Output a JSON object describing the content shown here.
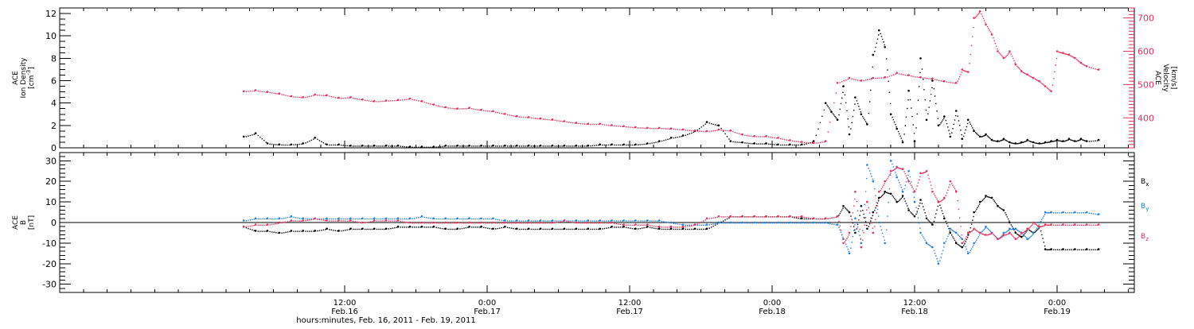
{
  "chart_data": [
    {
      "type": "scatter",
      "panel": "plasma",
      "ylabel_lines": [
        "ACE",
        "Ion Density",
        "[cm^-3]"
      ],
      "y2label_lines": [
        "ACE",
        "Velocity",
        "[km/s]"
      ],
      "ylim": [
        0,
        12.5
      ],
      "y_ticks": [
        0,
        2,
        4,
        6,
        8,
        10,
        12
      ],
      "y2lim": [
        310,
        730
      ],
      "y2_ticks": [
        400,
        500,
        600,
        700
      ],
      "series": [
        {
          "axis": "left",
          "color": "#000000",
          "x_hours": [
            0,
            1,
            2,
            3,
            4,
            5,
            6,
            7,
            8,
            9,
            10,
            11,
            12,
            13,
            14,
            15,
            16,
            17,
            18,
            19,
            20,
            21,
            22,
            23,
            24,
            25,
            26,
            27,
            28,
            29,
            30,
            31,
            32,
            33,
            34,
            35,
            36,
            37,
            38,
            39,
            40,
            41,
            42,
            43,
            44,
            45,
            46,
            47,
            48,
            49,
            49.5,
            50,
            50.5,
            51,
            51.5,
            52,
            52.5,
            53,
            53.5,
            54,
            54.5,
            55,
            55.5,
            56,
            56.5,
            57,
            57.5,
            58,
            58.5,
            59,
            59.5,
            60,
            60.5,
            61,
            61.5,
            62,
            62.5,
            63,
            63.5,
            64,
            64.5,
            65,
            65.5,
            66,
            66.5,
            67,
            67.5,
            68,
            68.5,
            69,
            69.5,
            70,
            70.5,
            71,
            72
          ],
          "y": [
            1.0,
            1.3,
            0.4,
            0.3,
            0.3,
            0.4,
            0.9,
            0.3,
            0.3,
            0.2,
            0.2,
            0.2,
            0.2,
            0.2,
            0.1,
            0.1,
            0.1,
            0.2,
            0.2,
            0.2,
            0.2,
            0.2,
            0.2,
            0.2,
            0.2,
            0.2,
            0.2,
            0.2,
            0.2,
            0.2,
            0.3,
            0.3,
            0.3,
            0.3,
            0.4,
            0.6,
            0.9,
            1.1,
            1.5,
            2.3,
            2.0,
            0.6,
            0.5,
            0.4,
            0.4,
            0.3,
            0.3,
            0.3,
            0.6,
            4.0,
            3.2,
            2.5,
            5.5,
            1.2,
            4.5,
            3.0,
            2.1,
            8.3,
            10.5,
            9.0,
            3.0,
            1.7,
            0.5,
            5.1,
            0.6,
            8.0,
            2.5,
            6.0,
            2.0,
            2.8,
            1.0,
            3.3,
            0.8,
            2.5,
            1.5,
            1.0,
            1.2,
            0.7,
            0.6,
            0.8,
            0.5,
            0.4,
            0.5,
            0.7,
            0.5,
            0.4,
            0.5,
            0.6,
            0.7,
            0.6,
            0.8,
            0.6,
            0.8,
            0.6,
            0.7
          ]
        },
        {
          "axis": "right",
          "color": "#e6305c",
          "x_hours": [
            0,
            1,
            2,
            3,
            4,
            5,
            6,
            7,
            8,
            9,
            10,
            11,
            12,
            13,
            14,
            15,
            16,
            17,
            18,
            19,
            20,
            21,
            22,
            23,
            24,
            25,
            26,
            27,
            28,
            29,
            30,
            31,
            32,
            33,
            34,
            35,
            36,
            37,
            38,
            39,
            40,
            41,
            42,
            43,
            44,
            45,
            46,
            47,
            48,
            49,
            50,
            51,
            52,
            53,
            54,
            55,
            56,
            57,
            58,
            59,
            60,
            60.5,
            61,
            61.5,
            62,
            62.5,
            63,
            63.5,
            64,
            64.5,
            65,
            65.5,
            66,
            66.5,
            67,
            67.5,
            68,
            68.5,
            69,
            69.5,
            70,
            70.5,
            71,
            72
          ],
          "y": [
            480,
            483,
            478,
            473,
            465,
            462,
            470,
            468,
            460,
            462,
            455,
            450,
            452,
            454,
            458,
            450,
            440,
            432,
            428,
            430,
            424,
            420,
            412,
            405,
            402,
            398,
            395,
            390,
            385,
            382,
            382,
            378,
            375,
            372,
            370,
            370,
            368,
            365,
            362,
            360,
            365,
            362,
            350,
            345,
            345,
            340,
            333,
            328,
            325,
            330,
            505,
            520,
            512,
            520,
            522,
            535,
            528,
            522,
            518,
            510,
            505,
            545,
            538,
            700,
            720,
            680,
            650,
            600,
            580,
            600,
            560,
            540,
            530,
            520,
            510,
            495,
            480,
            600,
            595,
            590,
            580,
            565,
            555,
            545
          ]
        }
      ]
    },
    {
      "type": "scatter",
      "panel": "magnetic-field",
      "ylabel_lines": [
        "ACE",
        "B",
        "[nT]"
      ],
      "ylim": [
        -34,
        34
      ],
      "y_ticks": [
        -30,
        -20,
        -10,
        0,
        10,
        20,
        30
      ],
      "zero_line": true,
      "series": [
        {
          "name": "Bx",
          "color": "#000000",
          "x_hours": [
            0,
            1,
            2,
            3,
            4,
            5,
            6,
            7,
            8,
            9,
            10,
            11,
            12,
            13,
            14,
            15,
            16,
            17,
            18,
            19,
            20,
            21,
            22,
            23,
            24,
            25,
            26,
            27,
            28,
            29,
            30,
            31,
            32,
            33,
            34,
            35,
            36,
            37,
            38,
            39,
            40,
            41,
            42,
            43,
            44,
            45,
            46,
            47,
            48,
            49,
            50,
            50.5,
            51,
            51.5,
            52,
            52.5,
            53,
            53.5,
            54,
            54.5,
            55,
            55.5,
            56,
            56.5,
            57,
            57.5,
            58,
            58.5,
            59,
            59.5,
            60,
            60.5,
            61,
            61.5,
            62,
            62.5,
            63,
            63.5,
            64,
            64.5,
            65,
            65.5,
            66,
            66.5,
            67,
            67.5,
            68,
            69,
            70,
            71,
            72
          ],
          "y": [
            -2,
            -4,
            -4,
            -5,
            -4,
            -4,
            -4,
            -3,
            -4,
            -3,
            -3,
            -3,
            -3,
            -2,
            -2,
            -2,
            -2,
            -3,
            -3,
            -2,
            -2,
            -3,
            -2,
            -3,
            -3,
            -3,
            -3,
            -3,
            -3,
            -3,
            -3,
            -2,
            -2,
            -3,
            -2,
            -3,
            -3,
            -3,
            -3,
            -3,
            0,
            3,
            3,
            3,
            3,
            3,
            3,
            2,
            2,
            2,
            3,
            8,
            5,
            -5,
            8,
            -3,
            5,
            12,
            15,
            14,
            10,
            13,
            6,
            3,
            11,
            2,
            -1,
            10,
            2,
            -5,
            -10,
            -12,
            -6,
            5,
            10,
            13,
            12,
            8,
            6,
            0,
            -5,
            -7,
            -3,
            -5,
            -2,
            -13,
            -13,
            -13,
            -13,
            -13,
            -13
          ]
        },
        {
          "name": "By",
          "color": "#1f7fe0",
          "x_hours": [
            0,
            1,
            2,
            3,
            4,
            5,
            6,
            7,
            8,
            9,
            10,
            11,
            12,
            13,
            14,
            15,
            16,
            17,
            18,
            19,
            20,
            21,
            22,
            23,
            24,
            25,
            26,
            27,
            28,
            29,
            30,
            31,
            32,
            33,
            34,
            35,
            36,
            37,
            38,
            39,
            40,
            41,
            42,
            43,
            44,
            45,
            46,
            47,
            48,
            49,
            50,
            50.5,
            51,
            51.5,
            52,
            52.5,
            53,
            53.5,
            54,
            54.5,
            55,
            55.5,
            56,
            56.5,
            57,
            57.5,
            58,
            58.5,
            59,
            59.5,
            60,
            60.5,
            61,
            61.5,
            62,
            62.5,
            63,
            63.5,
            64,
            64.5,
            65,
            65.5,
            66,
            66.5,
            67,
            67.5,
            68,
            69,
            70,
            71,
            72
          ],
          "y": [
            1,
            2,
            2,
            2,
            3,
            2,
            2,
            2,
            2,
            2,
            2,
            2,
            2,
            2,
            2,
            3,
            2,
            2,
            2,
            2,
            2,
            2,
            1,
            1,
            1,
            1,
            1,
            1,
            1,
            1,
            1,
            1,
            1,
            1,
            1,
            1,
            0,
            -1,
            -1,
            -1,
            0,
            0,
            0,
            0,
            0,
            0,
            0,
            0,
            0,
            0,
            -1,
            -8,
            -15,
            2,
            -10,
            28,
            20,
            0,
            -10,
            30,
            22,
            15,
            25,
            10,
            -5,
            -10,
            -12,
            -20,
            -10,
            -3,
            -5,
            -8,
            -15,
            -10,
            -5,
            -2,
            -5,
            -8,
            -5,
            -3,
            -3,
            -5,
            -8,
            -5,
            0,
            5,
            5,
            5,
            5,
            5,
            4
          ]
        },
        {
          "name": "Bz",
          "color": "#e6305c",
          "x_hours": [
            0,
            1,
            2,
            3,
            4,
            5,
            6,
            7,
            8,
            9,
            10,
            11,
            12,
            13,
            14,
            15,
            16,
            17,
            18,
            19,
            20,
            21,
            22,
            23,
            24,
            25,
            26,
            27,
            28,
            29,
            30,
            31,
            32,
            33,
            34,
            35,
            36,
            37,
            38,
            39,
            40,
            41,
            42,
            43,
            44,
            45,
            46,
            47,
            48,
            49,
            50,
            50.5,
            51,
            51.5,
            52,
            52.5,
            53,
            53.5,
            54,
            54.5,
            55,
            55.5,
            56,
            56.5,
            57,
            57.5,
            58,
            58.5,
            59,
            59.5,
            60,
            60.5,
            61,
            61.5,
            62,
            62.5,
            63,
            63.5,
            64,
            64.5,
            65,
            65.5,
            66,
            66.5,
            67,
            67.5,
            68,
            69,
            70,
            71,
            72
          ],
          "y": [
            -2,
            -1,
            -1,
            0,
            1,
            1,
            2,
            1,
            1,
            1,
            0,
            1,
            1,
            1,
            0,
            0,
            0,
            0,
            0,
            0,
            0,
            0,
            0,
            0,
            0,
            0,
            0,
            1,
            0,
            0,
            0,
            0,
            -1,
            -1,
            -1,
            -2,
            -2,
            -2,
            -1,
            2,
            3,
            3,
            3,
            3,
            3,
            3,
            3,
            3,
            2,
            2,
            3,
            -10,
            -5,
            15,
            -12,
            10,
            -5,
            15,
            20,
            25,
            27,
            26,
            20,
            15,
            24,
            25,
            15,
            10,
            12,
            20,
            15,
            -10,
            -5,
            -3,
            -5,
            -6,
            -5,
            -8,
            -6,
            -5,
            -8,
            -5,
            -3,
            0,
            -2,
            -1,
            -1,
            -1,
            -1,
            -1,
            -1
          ]
        }
      ],
      "legend_labels": [
        {
          "base": "B",
          "sub": "x",
          "color": "#000000"
        },
        {
          "base": "B",
          "sub": "y",
          "color": "#1f7fe0"
        },
        {
          "base": "B",
          "sub": "z",
          "color": "#e6305c"
        }
      ]
    }
  ],
  "time_axis": {
    "major_ticks": [
      {
        "hours": 8.5,
        "time": "12:00",
        "date": "Feb.16"
      },
      {
        "hours": 20.5,
        "time": "0:00",
        "date": "Feb.17"
      },
      {
        "hours": 32.5,
        "time": "12:00",
        "date": "Feb.17"
      },
      {
        "hours": 44.5,
        "time": "0:00",
        "date": "Feb.18"
      },
      {
        "hours": 56.5,
        "time": "12:00",
        "date": "Feb.18"
      },
      {
        "hours": 68.5,
        "time": "0:00",
        "date": "Feb.19"
      }
    ],
    "range_hours": [
      -15.5,
      75
    ],
    "xlabel": "hours:minutes, Feb. 16, 2011 - Feb. 19, 2011"
  }
}
